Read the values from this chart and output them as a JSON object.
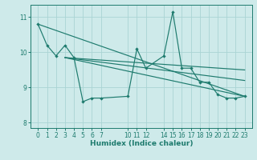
{
  "xlabel": "Humidex (Indice chaleur)",
  "bg_color": "#ceeaea",
  "line_color": "#1e7b6e",
  "grid_color": "#aad4d4",
  "ylim": [
    7.85,
    11.35
  ],
  "xlim": [
    -0.8,
    23.8
  ],
  "yticks": [
    8,
    9,
    10,
    11
  ],
  "xticks": [
    0,
    1,
    2,
    3,
    4,
    5,
    6,
    7,
    10,
    11,
    12,
    14,
    15,
    16,
    17,
    18,
    19,
    20,
    21,
    22,
    23
  ],
  "series_main": {
    "x": [
      0,
      1,
      2,
      3,
      4,
      5,
      6,
      7,
      10,
      11,
      12,
      14,
      15,
      16,
      17,
      18,
      19,
      20,
      21,
      22,
      23
    ],
    "y": [
      10.8,
      10.2,
      9.9,
      10.2,
      9.85,
      8.6,
      8.7,
      8.7,
      8.75,
      10.1,
      9.55,
      9.9,
      11.15,
      9.55,
      9.55,
      9.15,
      9.15,
      8.8,
      8.7,
      8.7,
      8.75
    ]
  },
  "trend_lines": [
    {
      "x": [
        0,
        23
      ],
      "y": [
        10.8,
        8.75
      ]
    },
    {
      "x": [
        3,
        23
      ],
      "y": [
        9.85,
        8.75
      ]
    },
    {
      "x": [
        3,
        23
      ],
      "y": [
        9.85,
        9.2
      ]
    },
    {
      "x": [
        3,
        23
      ],
      "y": [
        9.85,
        9.5
      ]
    }
  ]
}
